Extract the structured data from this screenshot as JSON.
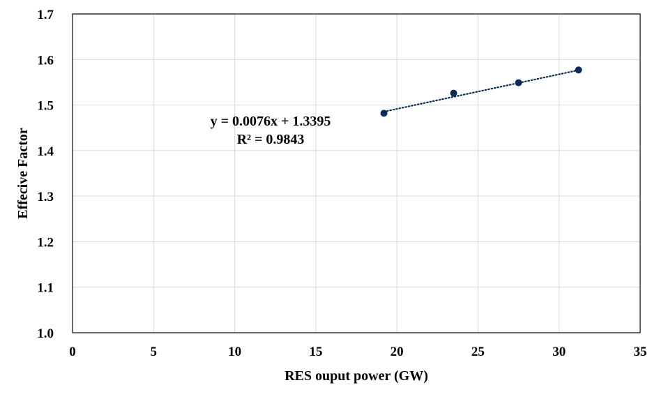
{
  "chart_data": {
    "type": "scatter",
    "xlabel": "RES ouput power (GW)",
    "ylabel": "Effecive Factor",
    "xlim": [
      0,
      35
    ],
    "ylim": [
      1.0,
      1.7
    ],
    "x_ticks": [
      "0",
      "5",
      "10",
      "15",
      "20",
      "25",
      "30",
      "35"
    ],
    "y_ticks": [
      "1.0",
      "1.1",
      "1.2",
      "1.3",
      "1.4",
      "1.5",
      "1.6",
      "1.7"
    ],
    "grid": true,
    "series": [
      {
        "x": [
          19.2,
          23.5,
          27.5,
          31.2
        ],
        "y": [
          1.482,
          1.526,
          1.549,
          1.577
        ],
        "marker_color": "#0c2a5c"
      }
    ],
    "trendline": {
      "type": "linear",
      "style": "dotted",
      "color": "#0c2a5c",
      "slope": 0.0076,
      "intercept": 1.3395,
      "x_range": [
        19.2,
        31.2
      ],
      "equation_text": "y = 0.0076x + 1.3395",
      "r2_text": "R² = 0.9843"
    }
  }
}
